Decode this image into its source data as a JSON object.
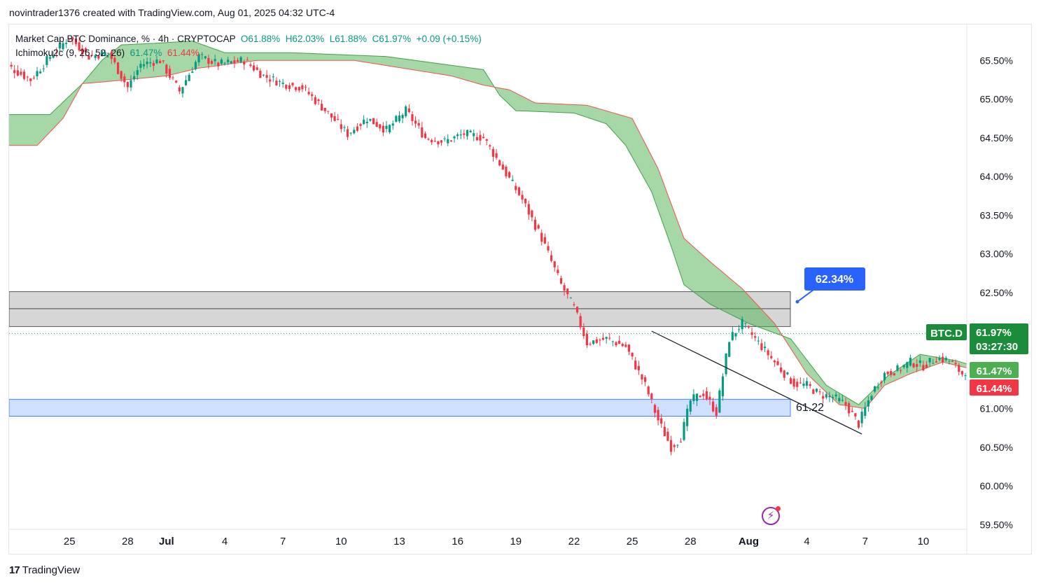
{
  "caption": "novintrader1376 created with TradingView.com, Aug 01, 2025 04:32 UTC-4",
  "brand": "TradingView",
  "legend": {
    "symbol": "Market Cap BTC Dominance, % · 4h · CRYPTOCAP",
    "open": "O61.88%",
    "high": "H62.03%",
    "low": "L61.88%",
    "close": "C61.97%",
    "change": "+0.09 (+0.15%)",
    "indicator": "Ichimoku2c (9, 26, 52, 26)",
    "ind_val_1": "61.47%",
    "ind_val_2": "61.44%"
  },
  "colors": {
    "up": "#089981",
    "down": "#f23645",
    "cloud_fill": "#4caf50",
    "cloud_edge": "#ef5350",
    "zone_gray": "#cfcfcf",
    "zone_blue": "#cfe0ff",
    "callout": "#2962ff",
    "price_label": "#1b8c3a"
  },
  "chart_data": {
    "type": "candlestick",
    "symbol": "BTC.D",
    "timeframe": "4h",
    "ylim": [
      59.4,
      66.0
    ],
    "y_ticks": [
      "65.50%",
      "65.00%",
      "64.50%",
      "64.00%",
      "63.50%",
      "63.00%",
      "62.50%",
      "62.00%",
      "61.50%",
      "61.00%",
      "60.50%",
      "60.00%",
      "59.50%"
    ],
    "x_ticks": [
      "25",
      "28",
      "Jul",
      "4",
      "7",
      "10",
      "13",
      "16",
      "19",
      "22",
      "25",
      "28",
      "Aug",
      "4",
      "7",
      "10"
    ],
    "x_tick_index": [
      -48,
      -30,
      -18,
      0,
      18,
      36,
      54,
      72,
      90,
      108,
      126,
      144,
      162,
      180,
      198,
      216
    ],
    "current_price_label": "BTC.D",
    "current_price": "61.97%",
    "countdown": "03:27:30",
    "ichimoku_label_a": "61.47%",
    "ichimoku_label_b": "61.44%",
    "callout": "62.34%",
    "support_level_label": "61.22",
    "zones": [
      {
        "name": "resistance",
        "top": 62.51,
        "mid": 62.29,
        "bottom": 62.06
      },
      {
        "name": "support",
        "top": 61.12,
        "bottom": 60.9
      }
    ],
    "trendline": [
      {
        "i": 132,
        "v": 62.0
      },
      {
        "i": 197,
        "v": 60.67
      }
    ],
    "cloud_anchors": {
      "span_a": [
        [
          -70,
          64.8
        ],
        [
          -54,
          64.8
        ],
        [
          -44,
          65.2
        ],
        [
          -38,
          65.5
        ],
        [
          -32,
          65.7
        ],
        [
          -22,
          65.72
        ],
        [
          -10,
          65.75
        ],
        [
          0,
          65.6
        ],
        [
          20,
          65.6
        ],
        [
          50,
          65.55
        ],
        [
          80,
          65.38
        ],
        [
          85,
          65.05
        ],
        [
          90,
          64.85
        ],
        [
          108,
          64.82
        ],
        [
          118,
          64.68
        ],
        [
          124,
          64.4
        ],
        [
          132,
          63.8
        ],
        [
          138,
          63.1
        ],
        [
          142,
          62.6
        ],
        [
          150,
          62.35
        ],
        [
          162,
          62.1
        ],
        [
          175,
          61.9
        ],
        [
          186,
          61.3
        ],
        [
          196,
          61.05
        ],
        [
          205,
          61.42
        ],
        [
          215,
          61.7
        ],
        [
          226,
          61.62
        ],
        [
          240,
          61.45
        ],
        [
          246,
          61.44
        ]
      ],
      "span_b": [
        [
          -70,
          64.4
        ],
        [
          -58,
          64.4
        ],
        [
          -50,
          64.75
        ],
        [
          -44,
          65.2
        ],
        [
          -38,
          65.22
        ],
        [
          -18,
          65.3
        ],
        [
          -8,
          65.4
        ],
        [
          10,
          65.5
        ],
        [
          40,
          65.5
        ],
        [
          70,
          65.3
        ],
        [
          80,
          65.18
        ],
        [
          88,
          65.12
        ],
        [
          96,
          64.95
        ],
        [
          112,
          64.92
        ],
        [
          126,
          64.75
        ],
        [
          134,
          64.1
        ],
        [
          142,
          63.2
        ],
        [
          150,
          62.9
        ],
        [
          160,
          62.55
        ],
        [
          170,
          62.1
        ],
        [
          180,
          61.45
        ],
        [
          190,
          61.05
        ],
        [
          198,
          61.0
        ],
        [
          204,
          61.3
        ],
        [
          212,
          61.45
        ],
        [
          222,
          61.6
        ],
        [
          232,
          61.5
        ],
        [
          240,
          61.47
        ],
        [
          246,
          61.47
        ]
      ]
    },
    "price_anchors": [
      [
        -70,
        65.65
      ],
      [
        -66,
        65.4
      ],
      [
        -60,
        65.25
      ],
      [
        -54,
        65.55
      ],
      [
        -48,
        65.8
      ],
      [
        -42,
        65.55
      ],
      [
        -36,
        65.6
      ],
      [
        -30,
        65.15
      ],
      [
        -26,
        65.45
      ],
      [
        -20,
        65.5
      ],
      [
        -14,
        65.1
      ],
      [
        -8,
        65.55
      ],
      [
        -2,
        65.45
      ],
      [
        6,
        65.5
      ],
      [
        12,
        65.3
      ],
      [
        18,
        65.2
      ],
      [
        24,
        65.15
      ],
      [
        30,
        64.9
      ],
      [
        38,
        64.55
      ],
      [
        44,
        64.75
      ],
      [
        50,
        64.6
      ],
      [
        56,
        64.85
      ],
      [
        62,
        64.5
      ],
      [
        68,
        64.45
      ],
      [
        74,
        64.55
      ],
      [
        80,
        64.5
      ],
      [
        86,
        64.1
      ],
      [
        92,
        63.7
      ],
      [
        98,
        63.2
      ],
      [
        104,
        62.6
      ],
      [
        108,
        62.3
      ],
      [
        112,
        61.85
      ],
      [
        118,
        61.9
      ],
      [
        124,
        61.8
      ],
      [
        130,
        61.3
      ],
      [
        134,
        60.85
      ],
      [
        138,
        60.5
      ],
      [
        141,
        60.62
      ],
      [
        144,
        61.1
      ],
      [
        148,
        61.2
      ],
      [
        152,
        60.95
      ],
      [
        156,
        61.9
      ],
      [
        160,
        62.1
      ],
      [
        164,
        61.9
      ],
      [
        168,
        61.7
      ],
      [
        172,
        61.5
      ],
      [
        176,
        61.32
      ],
      [
        180,
        61.3
      ],
      [
        184,
        61.18
      ],
      [
        188,
        61.15
      ],
      [
        192,
        61.05
      ],
      [
        196,
        60.8
      ],
      [
        200,
        61.2
      ],
      [
        204,
        61.45
      ],
      [
        208,
        61.5
      ],
      [
        212,
        61.6
      ],
      [
        216,
        61.55
      ],
      [
        220,
        61.65
      ],
      [
        224,
        61.62
      ],
      [
        228,
        61.45
      ],
      [
        232,
        61.6
      ],
      [
        236,
        61.75
      ],
      [
        240,
        61.97
      ]
    ]
  }
}
